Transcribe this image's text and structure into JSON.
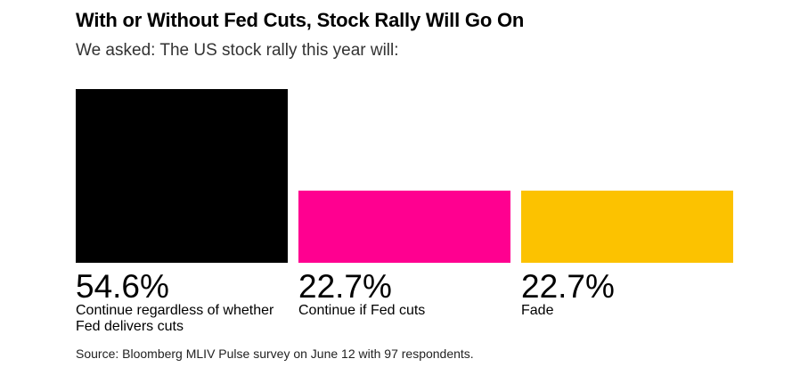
{
  "title": "With or Without Fed Cuts, Stock Rally Will Go On",
  "subtitle": "We asked: The US stock rally this year will:",
  "source": "Source: Bloomberg MLIV Pulse survey on June 12 with 97 respondents.",
  "chart_data": {
    "type": "bar",
    "categories": [
      "Continue regardless of whether Fed delivers cuts",
      "Continue if Fed cuts",
      "Fade"
    ],
    "values": [
      54.6,
      22.7,
      22.7
    ],
    "value_labels": [
      "54.6%",
      "22.7%",
      "22.7%"
    ],
    "colors": [
      "#000000",
      "#ff0090",
      "#fcc200"
    ],
    "title": "With or Without Fed Cuts, Stock Rally Will Go On",
    "subtitle": "We asked: The US stock rally this year will:",
    "unit": "%",
    "grid": false,
    "legend": "none"
  }
}
